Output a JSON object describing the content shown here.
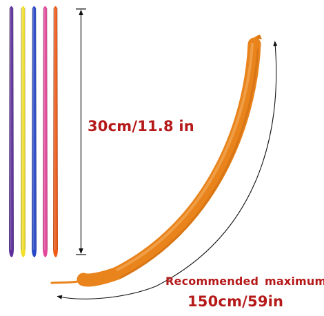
{
  "labels": {
    "uninflated_length": "30cm/11.8 in",
    "recommended": "Recommended  maximum",
    "max_length": "150cm/59in"
  },
  "colors": {
    "purple": "#5c2f9a",
    "yellow": "#f1df2a",
    "blue": "#2848c8",
    "pink": "#e4479b",
    "orange": "#ef5a17",
    "inflated": "#e9831b",
    "text": "#b51919",
    "dimension_line": "#111111"
  }
}
